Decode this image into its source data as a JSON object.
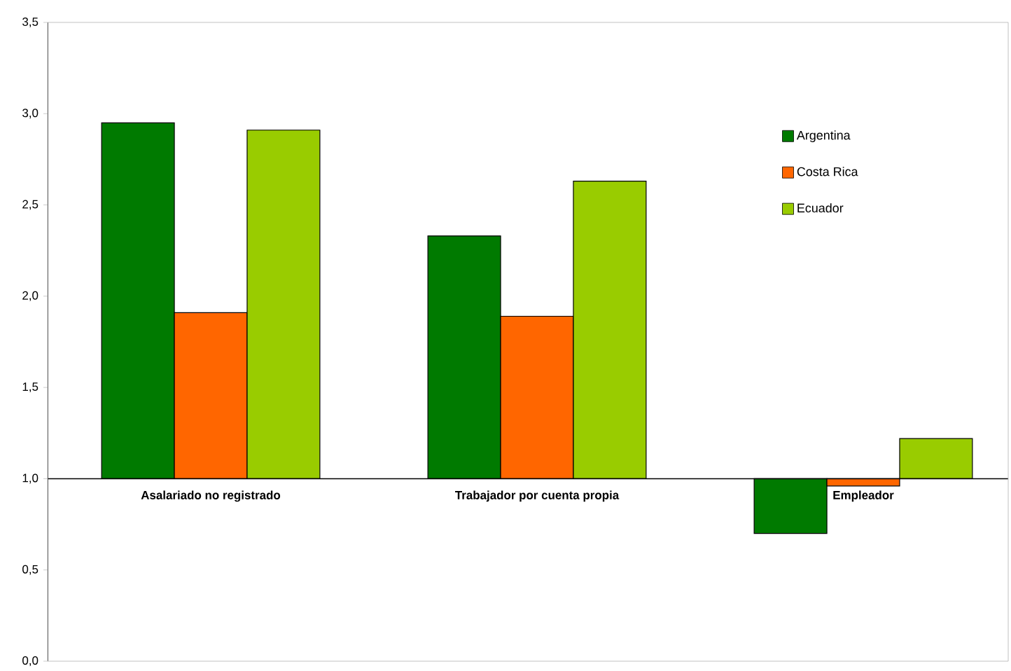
{
  "chart_data": {
    "type": "bar",
    "categories": [
      "Asalariado no registrado",
      "Trabajador por cuenta propia",
      "Empleador"
    ],
    "series": [
      {
        "name": "Argentina",
        "color": "#007a00",
        "values": [
          1.95,
          1.33,
          -0.3
        ],
        "base": [
          1,
          1,
          1
        ]
      },
      {
        "name": "Costa Rica",
        "color": "#ff6600",
        "values": [
          0.91,
          0.89,
          -0.04
        ],
        "base": [
          1,
          1,
          1
        ]
      },
      {
        "name": "Ecuador",
        "color": "#99cc00",
        "values": [
          1.91,
          1.63,
          0.22
        ],
        "base": [
          1,
          1,
          1
        ]
      }
    ],
    "ylim": [
      0,
      3.5
    ],
    "yticks": [
      {
        "value": 0,
        "label": "0,0"
      },
      {
        "value": 0.5,
        "label": "0,5"
      },
      {
        "value": 1,
        "label": "1,0"
      },
      {
        "value": 1.5,
        "label": "1,5"
      },
      {
        "value": 2,
        "label": "2,0"
      },
      {
        "value": 2.5,
        "label": "2,5"
      },
      {
        "value": 3,
        "label": "3,0"
      },
      {
        "value": 3.5,
        "label": "3,5"
      }
    ],
    "legend": "top right"
  }
}
